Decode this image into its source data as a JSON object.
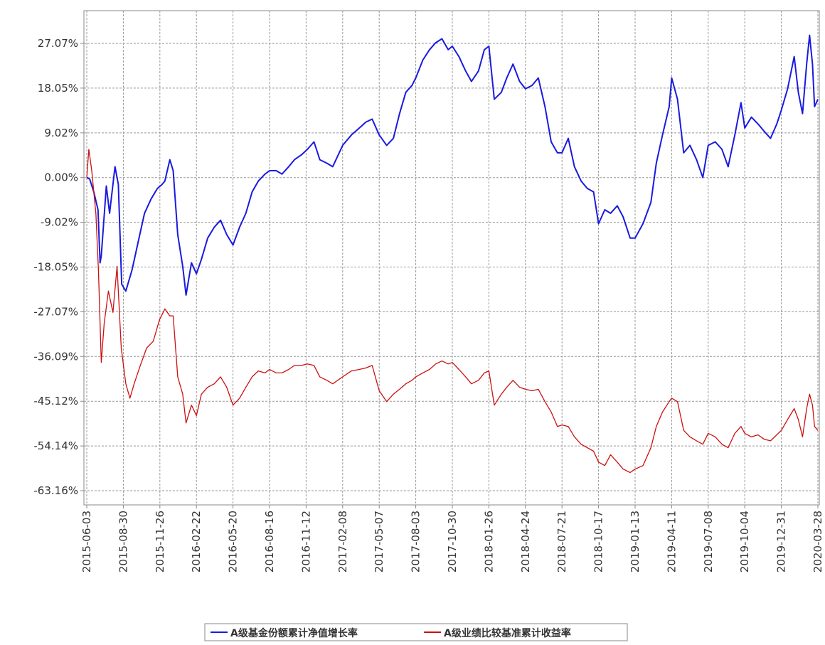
{
  "chart_data": {
    "type": "line",
    "xlim": [
      "2015-06-03",
      "2020-03-28"
    ],
    "xticks": [
      "2015-06-03",
      "2015-08-30",
      "2015-11-26",
      "2016-02-22",
      "2016-05-20",
      "2016-08-16",
      "2016-11-12",
      "2017-02-08",
      "2017-05-07",
      "2017-08-03",
      "2017-10-30",
      "2018-01-26",
      "2018-04-24",
      "2018-07-21",
      "2018-10-17",
      "2019-01-13",
      "2019-04-11",
      "2019-07-08",
      "2019-10-04",
      "2019-12-31",
      "2020-03-28"
    ],
    "ylim": [
      -66.03,
      33.67
    ],
    "yticks": [
      {
        "value": 27.07,
        "label": "27.07%"
      },
      {
        "value": 18.05,
        "label": "18.05%"
      },
      {
        "value": 9.02,
        "label": "9.02%"
      },
      {
        "value": 0,
        "label": "0.00%"
      },
      {
        "value": -9.02,
        "label": "-9.02%"
      },
      {
        "value": -18.05,
        "label": "-18.05%"
      },
      {
        "value": -27.07,
        "label": "-27.07%"
      },
      {
        "value": -36.09,
        "label": "-36.09%"
      },
      {
        "value": -45.12,
        "label": "-45.12%"
      },
      {
        "value": -54.14,
        "label": "-54.14%"
      },
      {
        "value": -63.16,
        "label": "-63.16%"
      }
    ],
    "grid": true,
    "legend": "bottom",
    "series": [
      {
        "name": "A级基金份额累计净值增长率",
        "color": "#1a1ae0",
        "x": [
          "2015-06-03",
          "2015-06-10",
          "2015-06-20",
          "2015-06-30",
          "2015-07-05",
          "2015-07-08",
          "2015-07-20",
          "2015-07-28",
          "2015-08-10",
          "2015-08-18",
          "2015-08-26",
          "2015-09-05",
          "2015-09-20",
          "2015-10-05",
          "2015-10-20",
          "2015-11-05",
          "2015-11-20",
          "2015-12-01",
          "2015-12-08",
          "2015-12-20",
          "2015-12-28",
          "2016-01-08",
          "2016-01-20",
          "2016-01-28",
          "2016-02-10",
          "2016-02-22",
          "2016-03-05",
          "2016-03-20",
          "2016-04-05",
          "2016-04-20",
          "2016-05-05",
          "2016-05-20",
          "2016-06-05",
          "2016-06-20",
          "2016-07-05",
          "2016-07-20",
          "2016-08-05",
          "2016-08-16",
          "2016-09-01",
          "2016-09-15",
          "2016-10-01",
          "2016-10-15",
          "2016-11-01",
          "2016-11-15",
          "2016-12-01",
          "2016-12-15",
          "2017-01-01",
          "2017-01-15",
          "2017-02-08",
          "2017-03-01",
          "2017-03-20",
          "2017-04-05",
          "2017-04-20",
          "2017-05-07",
          "2017-05-25",
          "2017-06-10",
          "2017-06-25",
          "2017-07-10",
          "2017-07-25",
          "2017-08-03",
          "2017-08-20",
          "2017-09-05",
          "2017-09-20",
          "2017-10-05",
          "2017-10-20",
          "2017-10-30",
          "2017-11-15",
          "2017-12-01",
          "2017-12-15",
          "2018-01-01",
          "2018-01-15",
          "2018-01-26",
          "2018-02-08",
          "2018-02-25",
          "2018-03-10",
          "2018-03-25",
          "2018-04-10",
          "2018-04-24",
          "2018-05-10",
          "2018-05-25",
          "2018-06-10",
          "2018-06-25",
          "2018-07-10",
          "2018-07-21",
          "2018-08-05",
          "2018-08-20",
          "2018-09-05",
          "2018-09-20",
          "2018-10-05",
          "2018-10-17",
          "2018-11-01",
          "2018-11-15",
          "2018-12-01",
          "2018-12-15",
          "2019-01-01",
          "2019-01-13",
          "2019-02-01",
          "2019-02-20",
          "2019-03-05",
          "2019-03-20",
          "2019-04-05",
          "2019-04-11",
          "2019-04-25",
          "2019-05-10",
          "2019-05-25",
          "2019-06-10",
          "2019-06-25",
          "2019-07-08",
          "2019-07-25",
          "2019-08-10",
          "2019-08-25",
          "2019-09-10",
          "2019-09-25",
          "2019-10-04",
          "2019-10-20",
          "2019-11-05",
          "2019-11-20",
          "2019-12-05",
          "2019-12-20",
          "2019-12-31",
          "2020-01-15",
          "2020-01-31",
          "2020-02-10",
          "2020-02-20",
          "2020-03-01",
          "2020-03-08",
          "2020-03-15",
          "2020-03-20",
          "2020-03-28"
        ],
        "values": [
          0.0,
          -0.3,
          -2.9,
          -6.5,
          -17.2,
          -15.8,
          -1.7,
          -7.2,
          2.2,
          -1.4,
          -21.5,
          -22.9,
          -18.6,
          -12.9,
          -7.2,
          -4.3,
          -2.2,
          -1.4,
          -0.7,
          3.6,
          1.4,
          -11.5,
          -17.9,
          -23.7,
          -17.2,
          -19.4,
          -16.5,
          -12.2,
          -10.0,
          -8.6,
          -11.5,
          -13.6,
          -10.0,
          -7.2,
          -2.9,
          -0.7,
          0.7,
          1.4,
          1.4,
          0.7,
          2.2,
          3.6,
          4.6,
          5.7,
          7.2,
          3.6,
          2.9,
          2.2,
          6.5,
          8.6,
          10.0,
          11.2,
          11.8,
          8.6,
          6.5,
          7.9,
          12.9,
          17.2,
          18.6,
          20.1,
          23.7,
          25.8,
          27.2,
          28.0,
          25.8,
          26.5,
          24.4,
          21.5,
          19.4,
          21.5,
          25.8,
          26.5,
          15.8,
          17.2,
          20.1,
          22.9,
          19.4,
          17.9,
          18.6,
          20.1,
          14.3,
          7.2,
          5.0,
          5.0,
          7.9,
          2.2,
          -0.7,
          -2.2,
          -2.9,
          -9.3,
          -6.5,
          -7.2,
          -5.7,
          -7.9,
          -12.2,
          -12.2,
          -9.3,
          -5.0,
          2.9,
          8.6,
          14.3,
          20.1,
          15.8,
          5.0,
          6.5,
          3.6,
          0.0,
          6.5,
          7.2,
          5.7,
          2.2,
          8.6,
          15.1,
          10.0,
          12.2,
          10.8,
          9.3,
          7.9,
          10.8,
          13.6,
          17.9,
          24.4,
          17.2,
          12.9,
          22.9,
          28.7,
          22.9,
          14.3,
          15.8
        ]
      },
      {
        "name": "A级业绩比较基准累计收益率",
        "color": "#cc1010",
        "x": [
          "2015-06-03",
          "2015-06-08",
          "2015-06-15",
          "2015-06-25",
          "2015-07-01",
          "2015-07-08",
          "2015-07-15",
          "2015-07-25",
          "2015-08-05",
          "2015-08-15",
          "2015-08-25",
          "2015-09-05",
          "2015-09-15",
          "2015-09-25",
          "2015-10-10",
          "2015-10-25",
          "2015-11-10",
          "2015-11-25",
          "2015-12-08",
          "2015-12-20",
          "2015-12-28",
          "2016-01-08",
          "2016-01-20",
          "2016-01-28",
          "2016-02-10",
          "2016-02-22",
          "2016-03-05",
          "2016-03-20",
          "2016-04-05",
          "2016-04-20",
          "2016-05-05",
          "2016-05-20",
          "2016-06-05",
          "2016-06-20",
          "2016-07-05",
          "2016-07-20",
          "2016-08-05",
          "2016-08-16",
          "2016-09-01",
          "2016-09-15",
          "2016-10-01",
          "2016-10-15",
          "2016-11-01",
          "2016-11-15",
          "2016-12-01",
          "2016-12-15",
          "2017-01-01",
          "2017-01-15",
          "2017-02-08",
          "2017-03-01",
          "2017-03-20",
          "2017-04-05",
          "2017-04-20",
          "2017-05-07",
          "2017-05-25",
          "2017-06-10",
          "2017-06-25",
          "2017-07-10",
          "2017-07-25",
          "2017-08-03",
          "2017-08-20",
          "2017-09-05",
          "2017-09-20",
          "2017-10-05",
          "2017-10-20",
          "2017-10-30",
          "2017-11-15",
          "2017-12-01",
          "2017-12-15",
          "2018-01-01",
          "2018-01-15",
          "2018-01-26",
          "2018-02-08",
          "2018-02-25",
          "2018-03-10",
          "2018-03-25",
          "2018-04-10",
          "2018-04-24",
          "2018-05-10",
          "2018-05-25",
          "2018-06-10",
          "2018-06-25",
          "2018-07-10",
          "2018-07-21",
          "2018-08-05",
          "2018-08-20",
          "2018-09-05",
          "2018-09-20",
          "2018-10-05",
          "2018-10-17",
          "2018-11-01",
          "2018-11-15",
          "2018-12-01",
          "2018-12-15",
          "2019-01-01",
          "2019-01-13",
          "2019-02-01",
          "2019-02-20",
          "2019-03-05",
          "2019-03-20",
          "2019-04-05",
          "2019-04-11",
          "2019-04-25",
          "2019-05-10",
          "2019-05-25",
          "2019-06-10",
          "2019-06-25",
          "2019-07-08",
          "2019-07-25",
          "2019-08-10",
          "2019-08-25",
          "2019-09-10",
          "2019-09-25",
          "2019-10-04",
          "2019-10-20",
          "2019-11-05",
          "2019-11-20",
          "2019-12-05",
          "2019-12-20",
          "2019-12-31",
          "2020-01-15",
          "2020-01-31",
          "2020-02-10",
          "2020-02-20",
          "2020-03-01",
          "2020-03-08",
          "2020-03-15",
          "2020-03-20",
          "2020-03-28"
        ],
        "values": [
          0.0,
          5.7,
          1.4,
          -7.2,
          -18.6,
          -37.3,
          -29.4,
          -22.9,
          -27.2,
          -17.9,
          -34.4,
          -41.6,
          -44.5,
          -41.6,
          -37.9,
          -34.4,
          -33.0,
          -28.7,
          -26.5,
          -27.9,
          -27.9,
          -40.2,
          -43.7,
          -49.5,
          -45.9,
          -48.0,
          -43.7,
          -42.3,
          -41.6,
          -40.2,
          -42.3,
          -45.9,
          -44.5,
          -42.3,
          -40.2,
          -39.0,
          -39.4,
          -38.7,
          -39.4,
          -39.4,
          -38.7,
          -37.9,
          -37.9,
          -37.6,
          -37.9,
          -40.2,
          -40.9,
          -41.6,
          -40.2,
          -39.0,
          -38.7,
          -38.4,
          -37.9,
          -43.0,
          -45.2,
          -43.7,
          -42.7,
          -41.6,
          -40.9,
          -40.2,
          -39.4,
          -38.7,
          -37.6,
          -37.0,
          -37.6,
          -37.3,
          -38.7,
          -40.2,
          -41.6,
          -40.9,
          -39.4,
          -39.0,
          -45.9,
          -43.7,
          -42.3,
          -40.9,
          -42.3,
          -42.7,
          -43.0,
          -42.7,
          -45.2,
          -47.3,
          -50.2,
          -49.9,
          -50.2,
          -52.3,
          -53.8,
          -54.5,
          -55.2,
          -57.4,
          -58.1,
          -55.9,
          -57.4,
          -58.8,
          -59.5,
          -58.8,
          -58.1,
          -54.5,
          -50.2,
          -47.3,
          -45.2,
          -44.5,
          -45.2,
          -51.0,
          -52.3,
          -53.1,
          -53.8,
          -51.6,
          -52.3,
          -53.8,
          -54.5,
          -51.6,
          -50.2,
          -51.6,
          -52.3,
          -51.9,
          -52.8,
          -53.1,
          -51.9,
          -51.0,
          -48.8,
          -46.6,
          -48.8,
          -52.3,
          -46.6,
          -43.7,
          -45.9,
          -50.2,
          -51.0
        ]
      }
    ]
  }
}
